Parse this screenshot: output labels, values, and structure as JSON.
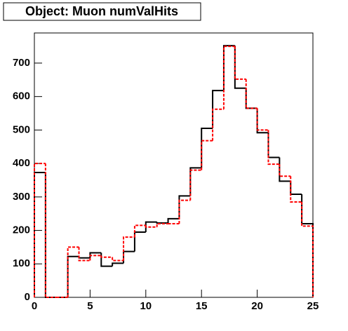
{
  "chart_data": {
    "type": "histogram",
    "title": "Object: Muon numValHits",
    "bins": [
      0,
      1,
      2,
      3,
      4,
      5,
      6,
      7,
      8,
      9,
      10,
      11,
      12,
      13,
      14,
      15,
      16,
      17,
      18,
      19,
      20,
      21,
      22,
      23,
      24,
      25
    ],
    "series": [
      {
        "color": "#000000",
        "line_style": "solid",
        "values": [
          373,
          0,
          0,
          122,
          118,
          133,
          93,
          102,
          137,
          195,
          225,
          222,
          235,
          303,
          387,
          505,
          618,
          752,
          625,
          565,
          492,
          418,
          347,
          308,
          220
        ]
      },
      {
        "color": "#ff0000",
        "line_style": "dashed",
        "values": [
          400,
          0,
          0,
          150,
          110,
          125,
          120,
          110,
          180,
          215,
          210,
          220,
          220,
          290,
          380,
          468,
          562,
          750,
          652,
          565,
          500,
          398,
          362,
          285,
          213
        ]
      }
    ],
    "xlim": [
      0,
      25
    ],
    "xticks": [
      0,
      5,
      10,
      15,
      20,
      25
    ],
    "ylim": [
      0,
      790
    ],
    "yticks": [
      0,
      100,
      200,
      300,
      400,
      500,
      600,
      700
    ]
  }
}
